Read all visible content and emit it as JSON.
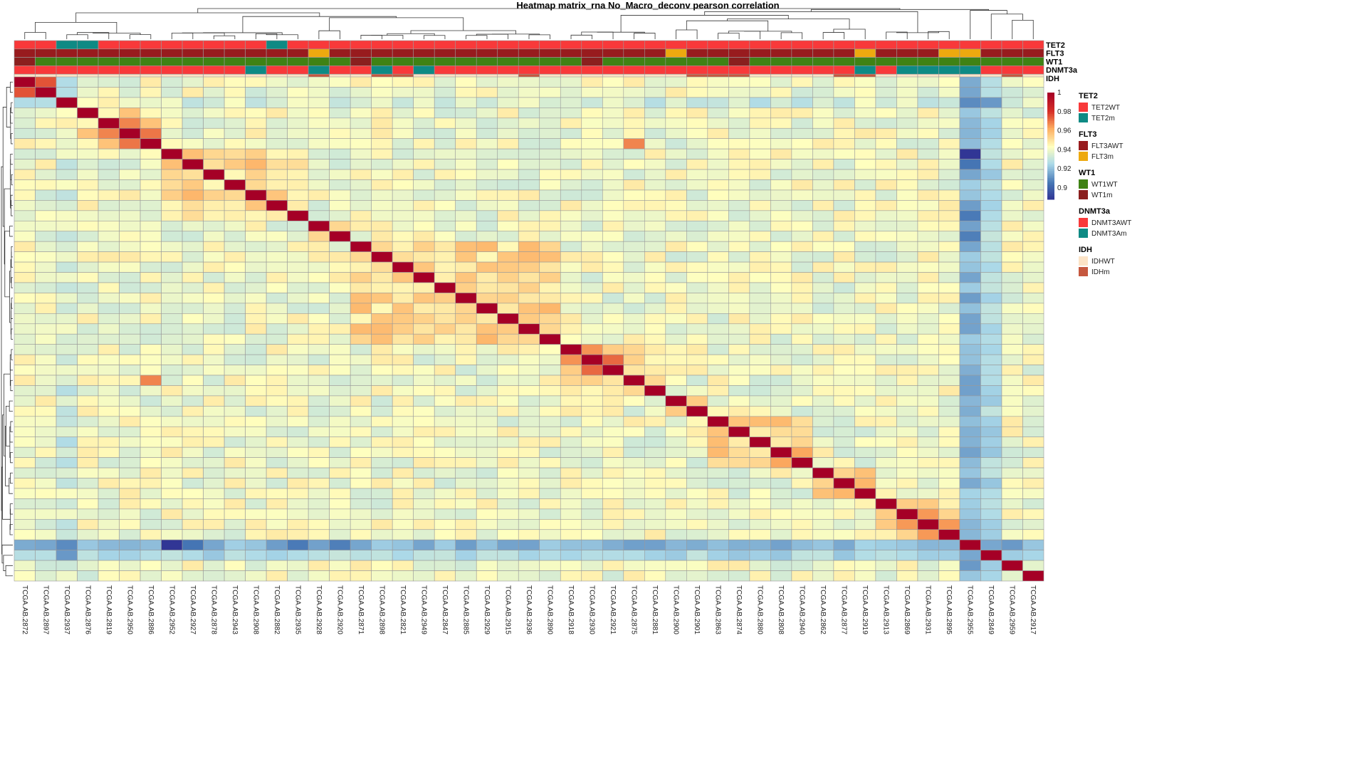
{
  "chart_data": {
    "type": "heatmap",
    "title": "Heatmap matrix_rna No_Macro_deconv pearson correlation",
    "samples": [
      "TCGA.AB.2872",
      "TCGA.AB.2897",
      "TCGA.AB.2937",
      "TCGA.AB.2876",
      "TCGA.AB.2819",
      "TCGA.AB.2950",
      "TCGA.AB.2886",
      "TCGA.AB.2952",
      "TCGA.AB.2927",
      "TCGA.AB.2878",
      "TCGA.AB.2943",
      "TCGA.AB.2908",
      "TCGA.AB.2882",
      "TCGA.AB.2935",
      "TCGA.AB.2928",
      "TCGA.AB.2920",
      "TCGA.AB.2871",
      "TCGA.AB.2898",
      "TCGA.AB.2821",
      "TCGA.AB.2949",
      "TCGA.AB.2847",
      "TCGA.AB.2885",
      "TCGA.AB.2929",
      "TCGA.AB.2915",
      "TCGA.AB.2936",
      "TCGA.AB.2890",
      "TCGA.AB.2918",
      "TCGA.AB.2930",
      "TCGA.AB.2921",
      "TCGA.AB.2875",
      "TCGA.AB.2881",
      "TCGA.AB.2900",
      "TCGA.AB.2901",
      "TCGA.AB.2863",
      "TCGA.AB.2874",
      "TCGA.AB.2880",
      "TCGA.AB.2808",
      "TCGA.AB.2940",
      "TCGA.AB.2862",
      "TCGA.AB.2877",
      "TCGA.AB.2919",
      "TCGA.AB.2913",
      "TCGA.AB.2869",
      "TCGA.AB.2931",
      "TCGA.AB.2895",
      "TCGA.AB.2955",
      "TCGA.AB.2849",
      "TCGA.AB.2959",
      "TCGA.AB.2917"
    ],
    "color_scale": {
      "min": 0.888,
      "max": 1,
      "ticks": [
        {
          "value": 1,
          "label": "1"
        },
        {
          "value": 0.98,
          "label": "0.98"
        },
        {
          "value": 0.96,
          "label": "0.96"
        },
        {
          "value": 0.94,
          "label": "0.94"
        },
        {
          "value": 0.92,
          "label": "0.92"
        },
        {
          "value": 0.9,
          "label": "0.9"
        }
      ]
    },
    "annotation_tracks": [
      {
        "name": "TET2",
        "levels": [
          "TET2WT",
          "TET2m"
        ],
        "colors": [
          "#F8393A",
          "#0E8A84"
        ],
        "values": [
          0,
          0,
          1,
          1,
          0,
          0,
          0,
          0,
          0,
          0,
          0,
          0,
          1,
          0,
          0,
          0,
          0,
          0,
          0,
          0,
          0,
          0,
          0,
          0,
          0,
          0,
          0,
          0,
          0,
          0,
          0,
          0,
          0,
          0,
          0,
          0,
          0,
          0,
          0,
          0,
          0,
          0,
          0,
          0,
          0,
          0,
          0,
          0,
          0
        ]
      },
      {
        "name": "FLT3",
        "levels": [
          "FLT3AWT",
          "FLT3m"
        ],
        "colors": [
          "#981B1E",
          "#EDA90F"
        ],
        "values": [
          0,
          0,
          0,
          0,
          0,
          0,
          0,
          0,
          0,
          0,
          0,
          0,
          0,
          0,
          1,
          0,
          0,
          0,
          0,
          0,
          0,
          0,
          0,
          0,
          0,
          0,
          0,
          0,
          0,
          0,
          0,
          1,
          0,
          0,
          0,
          0,
          0,
          0,
          0,
          0,
          1,
          0,
          0,
          0,
          1,
          1,
          0,
          0,
          0
        ]
      },
      {
        "name": "WT1",
        "levels": [
          "WT1WT",
          "WT1m"
        ],
        "colors": [
          "#3F8214",
          "#8A1F1E"
        ],
        "values": [
          1,
          0,
          0,
          0,
          0,
          0,
          0,
          0,
          0,
          0,
          0,
          0,
          0,
          0,
          0,
          0,
          1,
          0,
          0,
          0,
          0,
          0,
          0,
          0,
          0,
          0,
          0,
          1,
          0,
          0,
          0,
          0,
          0,
          0,
          1,
          0,
          0,
          0,
          0,
          0,
          0,
          0,
          0,
          0,
          0,
          0,
          0,
          0,
          0
        ]
      },
      {
        "name": "DNMT3a",
        "levels": [
          "DNMT3AWT",
          "DNMT3Am"
        ],
        "colors": [
          "#F8393A",
          "#0E8A84"
        ],
        "values": [
          0,
          0,
          0,
          0,
          0,
          0,
          0,
          0,
          0,
          0,
          0,
          1,
          0,
          0,
          1,
          0,
          0,
          1,
          0,
          1,
          0,
          0,
          0,
          0,
          0,
          0,
          0,
          0,
          0,
          0,
          0,
          0,
          0,
          0,
          0,
          0,
          0,
          0,
          0,
          0,
          1,
          0,
          1,
          1,
          1,
          1,
          0,
          0,
          0
        ]
      },
      {
        "name": "IDH",
        "levels": [
          "IDHWT",
          "IDHm"
        ],
        "colors": [
          "#FCE3C6",
          "#C6583F"
        ],
        "values": [
          0,
          0,
          0,
          0,
          0,
          0,
          0,
          0,
          0,
          0,
          0,
          0,
          0,
          0,
          1,
          0,
          0,
          1,
          1,
          0,
          0,
          0,
          0,
          0,
          1,
          0,
          0,
          0,
          0,
          0,
          0,
          0,
          1,
          1,
          1,
          0,
          0,
          0,
          0,
          1,
          1,
          0,
          0,
          0,
          0,
          0,
          0,
          1,
          0
        ]
      }
    ],
    "block_ranges": [
      [
        0,
        1
      ],
      [
        2,
        6
      ],
      [
        7,
        13
      ],
      [
        14,
        15
      ],
      [
        16,
        25
      ],
      [
        26,
        30
      ],
      [
        31,
        32
      ],
      [
        33,
        37
      ],
      [
        38,
        40
      ],
      [
        41,
        44
      ],
      [
        45,
        45
      ],
      [
        46,
        46
      ],
      [
        47,
        47
      ],
      [
        48,
        48
      ]
    ],
    "notable_values": [
      {
        "row": "TCGA.AB.2872",
        "col": "TCGA.AB.2897",
        "value": 0.975
      },
      {
        "row": "TCGA.AB.2950",
        "col": "TCGA.AB.2886",
        "value": 0.97
      },
      {
        "row": "TCGA.AB.2819",
        "col": "TCGA.AB.2950",
        "value": 0.968
      },
      {
        "row": "TCGA.AB.2886",
        "col": "TCGA.AB.2875",
        "value": 0.968
      },
      {
        "row": "TCGA.AB.2930",
        "col": "TCGA.AB.2921",
        "value": 0.972
      },
      {
        "row": "TCGA.AB.2918",
        "col": "TCGA.AB.2930",
        "value": 0.966
      },
      {
        "row": "TCGA.AB.2869",
        "col": "TCGA.AB.2931",
        "value": 0.965
      },
      {
        "row": "TCGA.AB.2931",
        "col": "TCGA.AB.2895",
        "value": 0.965
      },
      {
        "row": "TCGA.AB.2808",
        "col": "TCGA.AB.2940",
        "value": 0.963
      },
      {
        "row": "TCGA.AB.2955",
        "col": "TCGA.AB.2952",
        "value": 0.888
      },
      {
        "row": "TCGA.AB.2955",
        "col": "TCGA.AB.2927",
        "value": 0.905
      },
      {
        "row": "TCGA.AB.2955",
        "col": "TCGA.AB.2935",
        "value": 0.906
      },
      {
        "row": "TCGA.AB.2955",
        "col": "TCGA.AB.2920",
        "value": 0.907
      },
      {
        "row": "TCGA.AB.2955",
        "col": "TCGA.AB.2849",
        "value": 0.915
      },
      {
        "row": "TCGA.AB.2937",
        "col": "TCGA.AB.2849",
        "value": 0.912
      }
    ]
  }
}
